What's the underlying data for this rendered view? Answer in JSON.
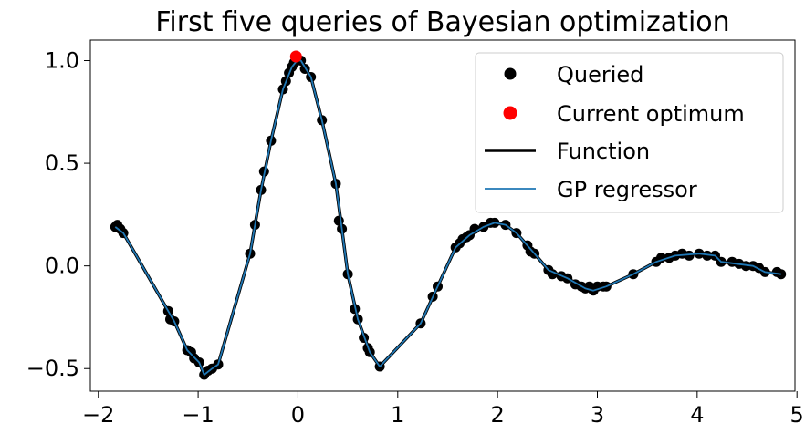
{
  "chart_data": {
    "type": "scatter",
    "title": "First five queries of Bayesian optimization",
    "xlabel": "",
    "ylabel": "",
    "xlim": [
      -2.08,
      4.98
    ],
    "ylim": [
      -0.61,
      1.1
    ],
    "x_ticks": [
      {
        "value": -2,
        "label": "−2"
      },
      {
        "value": -1,
        "label": "−1"
      },
      {
        "value": 0,
        "label": "0"
      },
      {
        "value": 1,
        "label": "1"
      },
      {
        "value": 2,
        "label": "2"
      },
      {
        "value": 3,
        "label": "3"
      },
      {
        "value": 4,
        "label": "4"
      },
      {
        "value": 5,
        "label": "5"
      }
    ],
    "y_ticks": [
      {
        "value": -0.5,
        "label": "−0.5"
      },
      {
        "value": 0.0,
        "label": "0.0"
      },
      {
        "value": 0.5,
        "label": "0.5"
      },
      {
        "value": 1.0,
        "label": "1.0"
      }
    ],
    "grid": false,
    "legend_position": "top-right",
    "colors": {
      "queried": "#000000",
      "optimum": "#ff0000",
      "function": "#000000",
      "gp": "#1f77b4"
    },
    "series": [
      {
        "name": "Queried",
        "kind": "scatter",
        "points": [
          [
            -1.83,
            0.19
          ],
          [
            -1.81,
            0.2
          ],
          [
            -1.78,
            0.18
          ],
          [
            -1.75,
            0.16
          ],
          [
            -1.3,
            -0.22
          ],
          [
            -1.28,
            -0.26
          ],
          [
            -1.24,
            -0.27
          ],
          [
            -1.11,
            -0.41
          ],
          [
            -1.07,
            -0.42
          ],
          [
            -1.04,
            -0.45
          ],
          [
            -0.99,
            -0.47
          ],
          [
            -0.94,
            -0.53
          ],
          [
            -0.9,
            -0.51
          ],
          [
            -0.86,
            -0.5
          ],
          [
            -0.8,
            -0.48
          ],
          [
            -0.48,
            0.06
          ],
          [
            -0.43,
            0.2
          ],
          [
            -0.37,
            0.37
          ],
          [
            -0.34,
            0.46
          ],
          [
            -0.27,
            0.61
          ],
          [
            -0.15,
            0.86
          ],
          [
            -0.12,
            0.9
          ],
          [
            -0.09,
            0.94
          ],
          [
            -0.06,
            0.97
          ],
          [
            -0.04,
            0.99
          ],
          [
            -0.01,
            1.0
          ],
          [
            0.03,
            1.0
          ],
          [
            0.07,
            0.96
          ],
          [
            0.13,
            0.92
          ],
          [
            0.24,
            0.71
          ],
          [
            0.38,
            0.4
          ],
          [
            0.41,
            0.22
          ],
          [
            0.44,
            0.18
          ],
          [
            0.5,
            -0.04
          ],
          [
            0.57,
            -0.21
          ],
          [
            0.6,
            -0.26
          ],
          [
            0.66,
            -0.35
          ],
          [
            0.7,
            -0.4
          ],
          [
            0.72,
            -0.42
          ],
          [
            0.82,
            -0.49
          ],
          [
            1.23,
            -0.28
          ],
          [
            1.35,
            -0.15
          ],
          [
            1.4,
            -0.1
          ],
          [
            1.58,
            0.09
          ],
          [
            1.62,
            0.11
          ],
          [
            1.65,
            0.13
          ],
          [
            1.69,
            0.14
          ],
          [
            1.72,
            0.15
          ],
          [
            1.77,
            0.18
          ],
          [
            1.86,
            0.19
          ],
          [
            1.93,
            0.21
          ],
          [
            1.97,
            0.21
          ],
          [
            2.08,
            0.2
          ],
          [
            2.19,
            0.16
          ],
          [
            2.3,
            0.1
          ],
          [
            2.33,
            0.07
          ],
          [
            2.37,
            0.06
          ],
          [
            2.51,
            -0.02
          ],
          [
            2.55,
            -0.04
          ],
          [
            2.64,
            -0.05
          ],
          [
            2.7,
            -0.06
          ],
          [
            2.78,
            -0.09
          ],
          [
            2.84,
            -0.1
          ],
          [
            2.88,
            -0.11
          ],
          [
            2.92,
            -0.1
          ],
          [
            2.96,
            -0.12
          ],
          [
            3.0,
            -0.1
          ],
          [
            3.06,
            -0.1
          ],
          [
            3.09,
            -0.1
          ],
          [
            3.36,
            -0.04
          ],
          [
            3.59,
            0.02
          ],
          [
            3.64,
            0.04
          ],
          [
            3.72,
            0.04
          ],
          [
            3.78,
            0.05
          ],
          [
            3.85,
            0.06
          ],
          [
            3.92,
            0.05
          ],
          [
            4.02,
            0.06
          ],
          [
            4.1,
            0.05
          ],
          [
            4.18,
            0.05
          ],
          [
            4.24,
            0.02
          ],
          [
            4.35,
            0.02
          ],
          [
            4.42,
            0.01
          ],
          [
            4.49,
            0.0
          ],
          [
            4.56,
            0.0
          ],
          [
            4.62,
            -0.01
          ],
          [
            4.68,
            -0.03
          ],
          [
            4.8,
            -0.03
          ],
          [
            4.84,
            -0.04
          ]
        ]
      },
      {
        "name": "Current optimum",
        "kind": "scatter",
        "points": [
          [
            -0.02,
            1.02
          ]
        ]
      },
      {
        "name": "Function",
        "kind": "line",
        "points": [
          [
            -1.83,
            0.19
          ],
          [
            -1.75,
            0.16
          ],
          [
            -1.3,
            -0.22
          ],
          [
            -1.24,
            -0.27
          ],
          [
            -1.11,
            -0.41
          ],
          [
            -0.99,
            -0.47
          ],
          [
            -0.94,
            -0.53
          ],
          [
            -0.86,
            -0.5
          ],
          [
            -0.8,
            -0.48
          ],
          [
            -0.48,
            0.06
          ],
          [
            -0.43,
            0.2
          ],
          [
            -0.37,
            0.37
          ],
          [
            -0.27,
            0.61
          ],
          [
            -0.15,
            0.86
          ],
          [
            -0.06,
            0.97
          ],
          [
            -0.01,
            1.0
          ],
          [
            0.03,
            1.0
          ],
          [
            0.13,
            0.92
          ],
          [
            0.24,
            0.71
          ],
          [
            0.38,
            0.4
          ],
          [
            0.44,
            0.18
          ],
          [
            0.5,
            -0.04
          ],
          [
            0.6,
            -0.26
          ],
          [
            0.72,
            -0.42
          ],
          [
            0.82,
            -0.49
          ],
          [
            1.23,
            -0.28
          ],
          [
            1.4,
            -0.1
          ],
          [
            1.58,
            0.09
          ],
          [
            1.72,
            0.15
          ],
          [
            1.86,
            0.19
          ],
          [
            1.97,
            0.21
          ],
          [
            2.08,
            0.2
          ],
          [
            2.19,
            0.16
          ],
          [
            2.37,
            0.06
          ],
          [
            2.51,
            -0.02
          ],
          [
            2.7,
            -0.06
          ],
          [
            2.88,
            -0.11
          ],
          [
            2.96,
            -0.12
          ],
          [
            3.09,
            -0.1
          ],
          [
            3.36,
            -0.04
          ],
          [
            3.59,
            0.02
          ],
          [
            3.78,
            0.05
          ],
          [
            4.02,
            0.06
          ],
          [
            4.18,
            0.05
          ],
          [
            4.24,
            0.02
          ],
          [
            4.56,
            0.0
          ],
          [
            4.68,
            -0.03
          ],
          [
            4.84,
            -0.04
          ]
        ]
      },
      {
        "name": "GP regressor",
        "kind": "line",
        "points": [
          [
            -1.83,
            0.19
          ],
          [
            -1.75,
            0.16
          ],
          [
            -1.3,
            -0.22
          ],
          [
            -1.24,
            -0.27
          ],
          [
            -1.11,
            -0.41
          ],
          [
            -0.99,
            -0.47
          ],
          [
            -0.94,
            -0.53
          ],
          [
            -0.86,
            -0.5
          ],
          [
            -0.8,
            -0.48
          ],
          [
            -0.48,
            0.06
          ],
          [
            -0.43,
            0.2
          ],
          [
            -0.37,
            0.37
          ],
          [
            -0.27,
            0.61
          ],
          [
            -0.15,
            0.86
          ],
          [
            -0.06,
            0.97
          ],
          [
            -0.01,
            1.0
          ],
          [
            0.03,
            1.0
          ],
          [
            0.13,
            0.92
          ],
          [
            0.24,
            0.71
          ],
          [
            0.38,
            0.4
          ],
          [
            0.44,
            0.18
          ],
          [
            0.5,
            -0.04
          ],
          [
            0.6,
            -0.26
          ],
          [
            0.72,
            -0.42
          ],
          [
            0.82,
            -0.49
          ],
          [
            1.23,
            -0.28
          ],
          [
            1.4,
            -0.1
          ],
          [
            1.58,
            0.09
          ],
          [
            1.72,
            0.15
          ],
          [
            1.86,
            0.19
          ],
          [
            1.97,
            0.21
          ],
          [
            2.08,
            0.2
          ],
          [
            2.19,
            0.16
          ],
          [
            2.37,
            0.06
          ],
          [
            2.51,
            -0.02
          ],
          [
            2.7,
            -0.06
          ],
          [
            2.88,
            -0.11
          ],
          [
            2.96,
            -0.12
          ],
          [
            3.09,
            -0.1
          ],
          [
            3.36,
            -0.04
          ],
          [
            3.59,
            0.02
          ],
          [
            3.78,
            0.05
          ],
          [
            4.02,
            0.06
          ],
          [
            4.18,
            0.05
          ],
          [
            4.24,
            0.02
          ],
          [
            4.56,
            0.0
          ],
          [
            4.68,
            -0.03
          ],
          [
            4.84,
            -0.04
          ]
        ]
      }
    ]
  }
}
